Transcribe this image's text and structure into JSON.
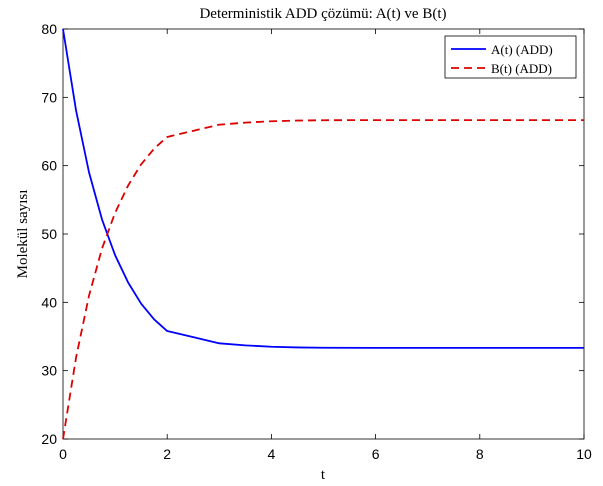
{
  "chart_data": {
    "type": "line",
    "title": "Deterministik ADD çözümü: A(t) ve B(t)",
    "xlabel": "t",
    "ylabel": "Molekül sayısı",
    "xlim": [
      0,
      10
    ],
    "ylim": [
      20,
      80
    ],
    "xticks": [
      0,
      2,
      4,
      6,
      8,
      10
    ],
    "yticks": [
      20,
      30,
      40,
      50,
      60,
      70,
      80
    ],
    "xtick_labels": [
      "0",
      "2",
      "4",
      "6",
      "8",
      "10"
    ],
    "ytick_labels": [
      "20",
      "30",
      "40",
      "50",
      "60",
      "70",
      "80"
    ],
    "grid": false,
    "legend_position": "top-right",
    "x": [
      0,
      0.25,
      0.5,
      0.75,
      1,
      1.25,
      1.5,
      1.75,
      2,
      2.5,
      3,
      3.5,
      4,
      4.5,
      5,
      6,
      7,
      8,
      9,
      10
    ],
    "series": [
      {
        "name": "A(t) (ADD)",
        "color": "#0000ff",
        "dash": "solid",
        "values": [
          80,
          68.1,
          59.0,
          52.1,
          46.9,
          42.9,
          39.8,
          37.5,
          35.8,
          34.9,
          34.0,
          33.7,
          33.5,
          33.4,
          33.35,
          33.33,
          33.33,
          33.33,
          33.33,
          33.33
        ]
      },
      {
        "name": "B(t) (ADD)",
        "color": "#dd0000",
        "dash": "dashed",
        "values": [
          20,
          31.9,
          41.0,
          47.9,
          53.1,
          57.1,
          60.2,
          62.5,
          64.2,
          65.1,
          66.0,
          66.3,
          66.5,
          66.6,
          66.65,
          66.67,
          66.67,
          66.67,
          66.67,
          66.67
        ]
      }
    ]
  }
}
